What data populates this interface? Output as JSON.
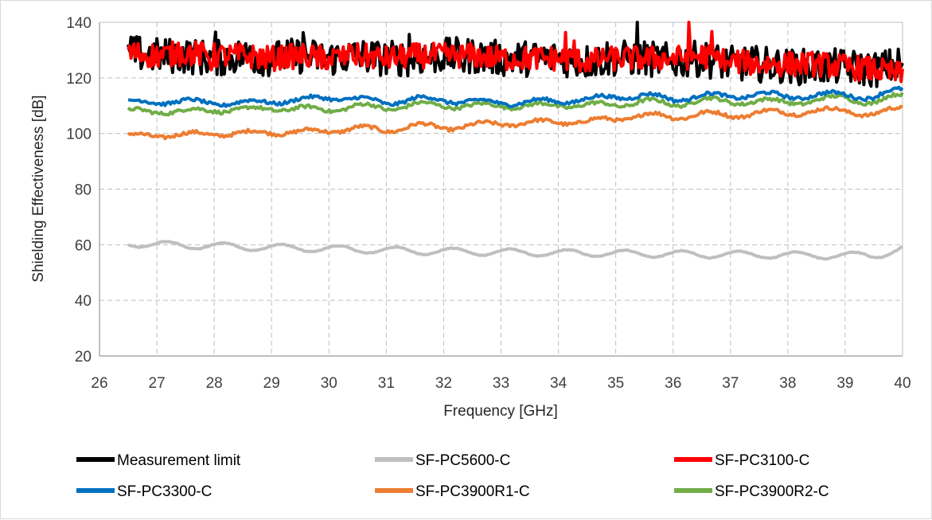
{
  "chart_data": {
    "type": "line",
    "title": "",
    "xlabel": "Frequency [GHz]",
    "ylabel": "Shielding Effectiveness [dB]",
    "xlim": [
      26,
      40
    ],
    "ylim": [
      20,
      140
    ],
    "xticks": [
      "26",
      "27",
      "28",
      "29",
      "30",
      "31",
      "32",
      "33",
      "34",
      "35",
      "36",
      "37",
      "38",
      "39",
      "40"
    ],
    "yticks": [
      "20",
      "40",
      "60",
      "80",
      "100",
      "120",
      "140"
    ],
    "grid": "dashed",
    "legend_position": "bottom",
    "x_start": 26.5,
    "x_end": 40,
    "series": [
      {
        "name": "Measurement limit",
        "color": "#000000",
        "noise": "high",
        "x": [
          26.5,
          27,
          27.5,
          28,
          28.5,
          29,
          29.5,
          30,
          30.5,
          31,
          31.5,
          32,
          32.5,
          33,
          33.5,
          34,
          34.5,
          35,
          35.5,
          36,
          36.5,
          37,
          37.5,
          38,
          38.5,
          39,
          39.5,
          40
        ],
        "y": [
          129,
          128,
          128,
          127,
          128,
          127,
          128,
          127,
          128,
          127,
          127,
          128,
          128,
          127,
          127,
          127,
          126,
          127,
          127,
          126,
          127,
          125,
          125,
          124,
          124,
          124,
          123,
          125
        ]
      },
      {
        "name": "SF-PC5600-C",
        "color": "#bfbfbf",
        "noise": "wave",
        "x": [
          26.5,
          27,
          27.5,
          28,
          28.5,
          29,
          29.5,
          30,
          30.5,
          31,
          31.5,
          32,
          32.5,
          33,
          33.5,
          34,
          34.5,
          35,
          35.5,
          36,
          36.5,
          37,
          37.5,
          38,
          38.5,
          39,
          39.5,
          40
        ],
        "y": [
          60.5,
          60,
          59.8,
          59.6,
          59.2,
          59,
          58.8,
          58.5,
          58.3,
          58,
          57.8,
          57.6,
          57.5,
          57.3,
          57.2,
          57,
          57,
          56.9,
          56.8,
          56.6,
          56.5,
          56.5,
          56.4,
          56.3,
          56.2,
          56.2,
          56.1,
          58.5
        ]
      },
      {
        "name": "SF-PC3100-C",
        "color": "#ff0000",
        "noise": "high",
        "x": [
          26.5,
          27,
          27.5,
          28,
          28.5,
          29,
          29.5,
          30,
          30.5,
          31,
          31.5,
          32,
          32.5,
          33,
          33.5,
          34,
          34.5,
          35,
          35.5,
          36,
          36.5,
          37,
          37.5,
          38,
          38.5,
          39,
          39.5,
          40
        ],
        "y": [
          129,
          128,
          129,
          128,
          128,
          127,
          128,
          127,
          128,
          127,
          128,
          128,
          128,
          127,
          127,
          127,
          126,
          127,
          127,
          127,
          128,
          126,
          125,
          125,
          125,
          124,
          123,
          121
        ]
      },
      {
        "name": "SF-PC3300-C",
        "color": "#0070c0",
        "noise": "low",
        "x": [
          26.5,
          27,
          27.5,
          28,
          28.5,
          29,
          29.5,
          30,
          30.5,
          31,
          31.5,
          32,
          32.5,
          33,
          33.5,
          34,
          34.5,
          35,
          35.5,
          36,
          36.5,
          37,
          37.5,
          38,
          38.5,
          39,
          39.5,
          40
        ],
        "y": [
          111,
          111.5,
          111.5,
          111,
          111,
          111.5,
          112,
          113,
          112.5,
          111,
          112.5,
          112,
          111.5,
          111,
          111.5,
          111.5,
          112.5,
          113,
          114,
          112,
          114,
          113,
          114.5,
          113,
          114,
          114,
          113,
          116
        ]
      },
      {
        "name": "SF-PC3900R1-C",
        "color": "#ed7d31",
        "noise": "low",
        "x": [
          26.5,
          27,
          27.5,
          28,
          28.5,
          29,
          29.5,
          30,
          30.5,
          31,
          31.5,
          32,
          32.5,
          33,
          33.5,
          34,
          34.5,
          35,
          35.5,
          36,
          36.5,
          37,
          37.5,
          38,
          38.5,
          39,
          39.5,
          40
        ],
        "y": [
          99,
          99.5,
          99.5,
          100,
          100,
          100.5,
          100.5,
          101,
          102,
          101,
          103,
          102,
          103,
          103.5,
          104,
          104,
          104.5,
          105,
          107,
          105.5,
          107.5,
          106,
          108,
          107,
          108.5,
          108,
          107,
          109
        ]
      },
      {
        "name": "SF-PC3900R2-C",
        "color": "#70ad47",
        "noise": "low",
        "x": [
          26.5,
          27,
          27.5,
          28,
          28.5,
          29,
          29.5,
          30,
          30.5,
          31,
          31.5,
          32,
          32.5,
          33,
          33.5,
          34,
          34.5,
          35,
          35.5,
          36,
          36.5,
          37,
          37.5,
          38,
          38.5,
          39,
          39.5,
          40
        ],
        "y": [
          108,
          108,
          108,
          108.5,
          108.5,
          109,
          109,
          108.5,
          110,
          109,
          110.5,
          110,
          110,
          110,
          110,
          110,
          110.5,
          110,
          112,
          110,
          112.5,
          111,
          112,
          111,
          112,
          113,
          111,
          114
        ]
      }
    ]
  },
  "legend": {
    "items": [
      {
        "label": "Measurement limit",
        "color": "#000000"
      },
      {
        "label": "SF-PC5600-C",
        "color": "#bfbfbf"
      },
      {
        "label": "SF-PC3100-C",
        "color": "#ff0000"
      },
      {
        "label": "SF-PC3300-C",
        "color": "#0070c0"
      },
      {
        "label": "SF-PC3900R1-C",
        "color": "#ed7d31"
      },
      {
        "label": "SF-PC3900R2-C",
        "color": "#70ad47"
      }
    ]
  }
}
